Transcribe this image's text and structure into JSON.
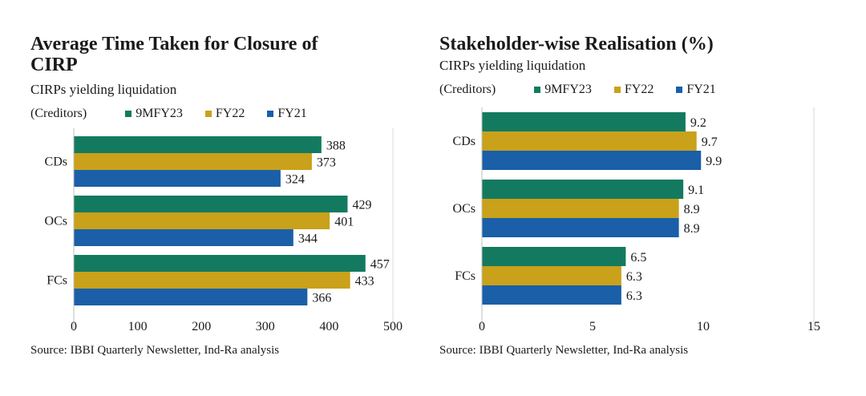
{
  "colors": {
    "9MFY23": "#137a60",
    "FY22": "#c9a11a",
    "FY21": "#1a5fa8"
  },
  "legend_prefix": "(Creditors)",
  "source": "Source: IBBI Quarterly Newsletter, Ind-Ra analysis",
  "chart_data": [
    {
      "type": "bar",
      "orientation": "horizontal",
      "title": "Average Time Taken for Closure of CIRP",
      "subtitle": "CIRPs yielding liquidation",
      "categories": [
        "CDs",
        "OCs",
        "FCs"
      ],
      "series": [
        {
          "name": "9MFY23",
          "values": [
            388,
            429,
            457
          ]
        },
        {
          "name": "FY22",
          "values": [
            373,
            401,
            433
          ]
        },
        {
          "name": "FY21",
          "values": [
            324,
            344,
            366
          ]
        }
      ],
      "xlim": [
        0,
        500
      ],
      "xticks": [
        0,
        100,
        200,
        300,
        400,
        500
      ],
      "legend": "top"
    },
    {
      "type": "bar",
      "orientation": "horizontal",
      "title": "Stakeholder-wise Realisation (%)",
      "subtitle": "CIRPs yielding liquidation",
      "categories": [
        "CDs",
        "OCs",
        "FCs"
      ],
      "series": [
        {
          "name": "9MFY23",
          "values": [
            9.2,
            9.1,
            6.5
          ]
        },
        {
          "name": "FY22",
          "values": [
            9.7,
            8.9,
            6.3
          ]
        },
        {
          "name": "FY21",
          "values": [
            9.9,
            8.9,
            6.3
          ]
        }
      ],
      "xlim": [
        0,
        15
      ],
      "xticks": [
        0,
        5,
        10,
        15
      ],
      "legend": "top"
    }
  ]
}
